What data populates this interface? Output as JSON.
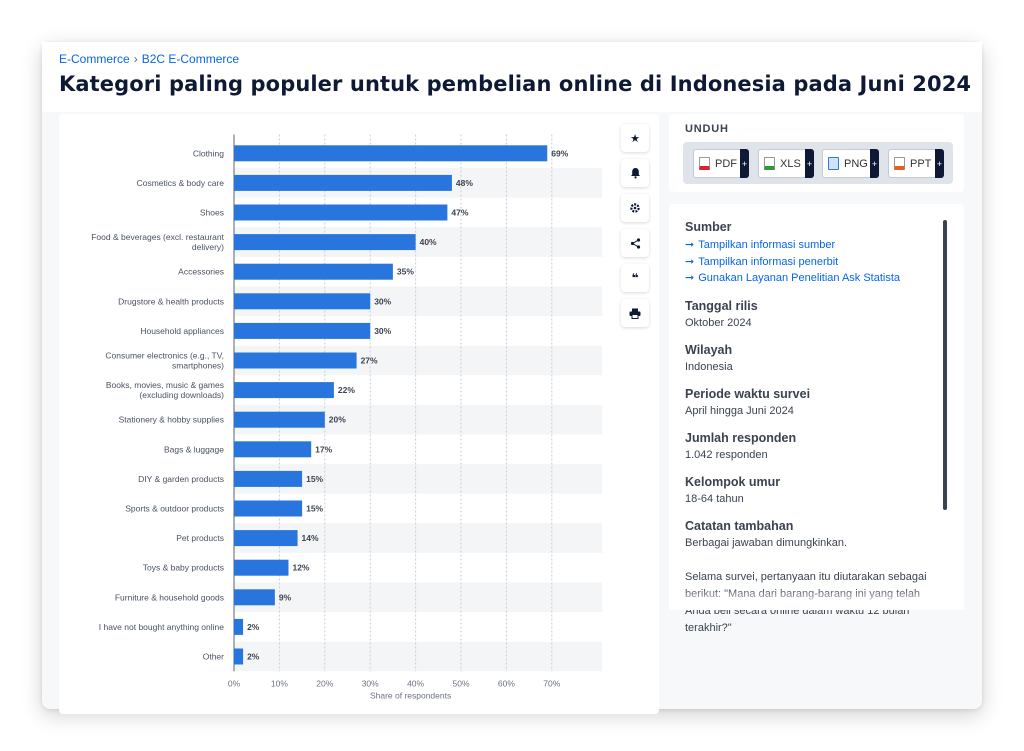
{
  "breadcrumb": {
    "item1": "E-Commerce",
    "sep": "›",
    "item2": "B2C E-Commerce"
  },
  "title": "Kategori paling populer untuk pembelian online di Indonesia pada Juni 2024",
  "toolbar": {
    "icons": [
      "star-icon",
      "bell-icon",
      "gear-icon",
      "share-icon",
      "quote-icon",
      "print-icon"
    ]
  },
  "download": {
    "title": "UNDUH",
    "buttons": [
      {
        "label": "PDF",
        "icon": "pdf-file-icon",
        "color": "#d9232e"
      },
      {
        "label": "XLS",
        "icon": "xls-file-icon",
        "color": "#2f9a3c"
      },
      {
        "label": "PNG",
        "icon": "png-file-icon",
        "color": "#2b7bd8"
      },
      {
        "label": "PPT",
        "icon": "ppt-file-icon",
        "color": "#e06320"
      }
    ],
    "plus": "+"
  },
  "info": {
    "source_label": "Sumber",
    "links": [
      "Tampilkan informasi sumber",
      "Tampilkan informasi penerbit",
      "Gunakan Layanan Penelitian Ask Statista"
    ],
    "release_label": "Tanggal rilis",
    "release_value": "Oktober 2024",
    "region_label": "Wilayah",
    "region_value": "Indonesia",
    "period_label": "Periode waktu survei",
    "period_value": "April hingga Juni 2024",
    "respondents_label": "Jumlah responden",
    "respondents_value": "1.042 responden",
    "age_label": "Kelompok umur",
    "age_value": "18-64 tahun",
    "notes_label": "Catatan tambahan",
    "notes_value": "Berbagai jawaban dimungkinkan.",
    "notes_extra": "Selama survei, pertanyaan itu diutarakan sebagai berikut: \"Mana dari barang-barang ini yang telah Anda beli secara online dalam waktu 12 bulan terakhir?\""
  },
  "colors": {
    "bar": "#2876dd",
    "link": "#0666e5",
    "text": "#0e1a35"
  },
  "chart_data": {
    "type": "bar",
    "orientation": "horizontal",
    "categories": [
      [
        "Clothing"
      ],
      [
        "Cosmetics & body care"
      ],
      [
        "Shoes"
      ],
      [
        "Food & beverages (excl. restaurant",
        "delivery)"
      ],
      [
        "Accessories"
      ],
      [
        "Drugstore & health products"
      ],
      [
        "Household appliances"
      ],
      [
        "Consumer electronics (e.g., TV,",
        "smartphones)"
      ],
      [
        "Books, movies, music & games",
        "(excluding downloads)"
      ],
      [
        "Stationery & hobby supplies"
      ],
      [
        "Bags & luggage"
      ],
      [
        "DIY & garden products"
      ],
      [
        "Sports & outdoor products"
      ],
      [
        "Pet products"
      ],
      [
        "Toys & baby products"
      ],
      [
        "Furniture & household goods"
      ],
      [
        "I have not bought anything online"
      ],
      [
        "Other"
      ]
    ],
    "values": [
      69,
      48,
      47,
      40,
      35,
      30,
      30,
      27,
      22,
      20,
      17,
      15,
      15,
      14,
      12,
      9,
      2,
      2
    ],
    "value_suffix": "%",
    "xlabel": "Share of respondents",
    "xticks": [
      "0%",
      "10%",
      "20%",
      "30%",
      "40%",
      "50%",
      "60%",
      "70%"
    ],
    "xlim": [
      0,
      80
    ],
    "grid": true
  }
}
